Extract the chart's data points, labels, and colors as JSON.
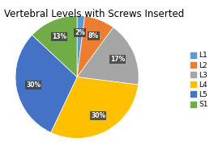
{
  "title": "Vertebral Levels with Screws Inserted",
  "labels": [
    "L1",
    "L2",
    "L3",
    "L4",
    "L5",
    "S1"
  ],
  "sizes": [
    2,
    8,
    17,
    30,
    30,
    13
  ],
  "colors": [
    "#5b9bd5",
    "#ed7d31",
    "#a5a5a5",
    "#ffc000",
    "#4472c4",
    "#70ad47"
  ],
  "startangle": 90,
  "pct_fontsize": 5.5,
  "title_fontsize": 8.5,
  "legend_fontsize": 6.5,
  "background_color": "#f0f0f0"
}
